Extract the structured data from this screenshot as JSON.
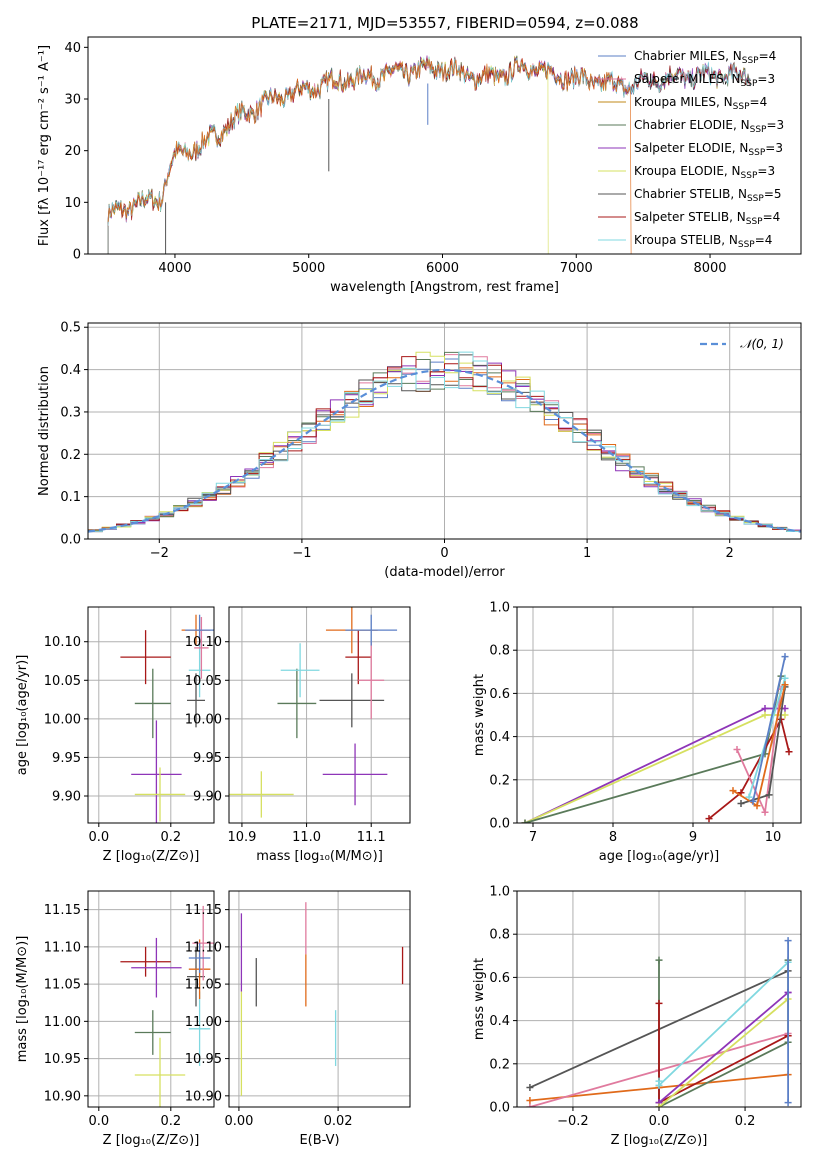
{
  "title": "PLATE=2171, MJD=53557, FIBERID=0594, z=0.088",
  "colors": {
    "Chabrier MILES": "#5b7fc6",
    "Salpeter MILES": "#e07a9e",
    "Kroupa MILES": "#c08a1a",
    "Chabrier ELODIE": "#5a7a5a",
    "Salpeter ELODIE": "#8e35b8",
    "Kroupa ELODIE": "#d6e060",
    "Chabrier STELIB": "#555555",
    "Salpeter STELIB": "#a81818",
    "Kroupa STELIB": "#80d8e0",
    "orange": "#e06a1a",
    "gaussian": "#5a8fd8",
    "grid": "#b0b0b0"
  },
  "chart_data": [
    {
      "id": "spectrum",
      "type": "line",
      "title": "PLATE=2171, MJD=53557, FIBERID=0594, z=0.088",
      "xlabel": "wavelength [Angstrom, rest frame]",
      "ylabel": "Flux [fλ 10⁻¹⁷ erg cm⁻² s⁻¹ A⁻¹]",
      "xlim": [
        3350,
        8680
      ],
      "ylim": [
        0,
        42
      ],
      "xticks": [
        4000,
        5000,
        6000,
        7000,
        8000
      ],
      "yticks": [
        0,
        10,
        20,
        30,
        40
      ],
      "grid": false,
      "legend_position": "top-right",
      "legend": [
        {
          "base": "Chabrier MILES, N",
          "sub": "SSP",
          "tail": "=4"
        },
        {
          "base": "Salpeter MILES, N",
          "sub": "SSP",
          "tail": "=3"
        },
        {
          "base": "Kroupa MILES, N",
          "sub": "SSP",
          "tail": "=4"
        },
        {
          "base": "Chabrier ELODIE, N",
          "sub": "SSP",
          "tail": "=3"
        },
        {
          "base": "Salpeter ELODIE, N",
          "sub": "SSP",
          "tail": "=3"
        },
        {
          "base": "Kroupa ELODIE, N",
          "sub": "SSP",
          "tail": "=3"
        },
        {
          "base": "Chabrier STELIB, N",
          "sub": "SSP",
          "tail": "=5"
        },
        {
          "base": "Salpeter STELIB, N",
          "sub": "SSP",
          "tail": "=4"
        },
        {
          "base": "Kroupa STELIB, N",
          "sub": "SSP",
          "tail": "=4"
        }
      ],
      "continuum": {
        "x": [
          3500,
          3700,
          3900,
          3950,
          4000,
          4200,
          4300,
          4500,
          4800,
          5000,
          5200,
          5500,
          5800,
          6000,
          6300,
          6500,
          6600,
          6800,
          7000,
          7200,
          7400,
          7600,
          8000,
          8300
        ],
        "y": [
          7.5,
          9.5,
          11,
          16,
          19,
          21,
          23,
          27,
          30.5,
          32,
          33.5,
          34.5,
          35.5,
          36,
          34,
          35,
          36.5,
          35,
          34,
          33,
          32.5,
          34,
          34.5,
          34.5
        ]
      },
      "cutoffs": {
        "Kroupa ELODIE": 6790,
        "orange": 7410,
        "Chabrier STELIB": 3930,
        "Chabrier ELODIE": 3930
      }
    },
    {
      "id": "residual-distribution",
      "type": "line",
      "xlabel": "(data-model)/error",
      "ylabel": "Normed distribution",
      "xlim": [
        -2.5,
        2.5
      ],
      "ylim": [
        0,
        0.51
      ],
      "xticks": [
        -2,
        -1,
        0,
        1,
        2
      ],
      "yticks": [
        0.0,
        0.1,
        0.2,
        0.3,
        0.4,
        0.5
      ],
      "grid": true,
      "legend_position": "top-right",
      "gaussian_label": "𝒩(0, 1)"
    },
    {
      "id": "age-vs-Z",
      "type": "scatter",
      "xlabel": "Z [log₁₀(Z/Z⊙)]",
      "ylabel": "age  [log₁₀(age/yr)]",
      "xlim": [
        -0.03,
        0.32
      ],
      "ylim": [
        9.865,
        10.145
      ],
      "xticks": [
        0.0,
        0.2
      ],
      "yticks": [
        9.9,
        9.95,
        10.0,
        10.05,
        10.1
      ],
      "points": [
        {
          "x": 0.13,
          "y": 10.08,
          "dx": 0.07,
          "dy": 0.035,
          "c": "Salpeter STELIB"
        },
        {
          "x": 0.15,
          "y": 10.02,
          "dx": 0.05,
          "dy": 0.045,
          "c": "Chabrier ELODIE"
        },
        {
          "x": 0.16,
          "y": 9.928,
          "dx": 0.07,
          "dy": 0.07,
          "c": "Salpeter ELODIE"
        },
        {
          "x": 0.17,
          "y": 9.902,
          "dx": 0.07,
          "dy": 0.035,
          "c": "Kroupa ELODIE"
        },
        {
          "x": 0.27,
          "y": 10.024,
          "dx": 0.025,
          "dy": 0.035,
          "c": "Chabrier STELIB"
        },
        {
          "x": 0.28,
          "y": 10.063,
          "dx": 0.03,
          "dy": 0.035,
          "c": "Kroupa STELIB"
        },
        {
          "x": 0.27,
          "y": 10.115,
          "dx": 0.04,
          "dy": 0.02,
          "c": "orange"
        },
        {
          "x": 0.285,
          "y": 10.092,
          "dx": 0.02,
          "dy": 0.04,
          "c": "Salpeter MILES"
        },
        {
          "x": 0.28,
          "y": 10.115,
          "dx": 0.04,
          "dy": 0.02,
          "c": "Chabrier MILES"
        }
      ]
    },
    {
      "id": "age-vs-mass",
      "type": "scatter",
      "xlabel": "mass [log₁₀(M/M⊙)]",
      "ylabel": "",
      "xlim": [
        10.88,
        11.16
      ],
      "ylim": [
        9.865,
        10.145
      ],
      "xticks": [
        10.9,
        11.0,
        11.1
      ],
      "yticks": [
        9.9,
        9.95,
        10.0,
        10.05,
        10.1
      ],
      "points": [
        {
          "x": 11.08,
          "y": 10.08,
          "dx": 0.02,
          "dy": 0.035,
          "c": "Salpeter STELIB"
        },
        {
          "x": 10.985,
          "y": 10.02,
          "dx": 0.03,
          "dy": 0.045,
          "c": "Chabrier ELODIE"
        },
        {
          "x": 11.075,
          "y": 9.928,
          "dx": 0.05,
          "dy": 0.04,
          "c": "Salpeter ELODIE"
        },
        {
          "x": 10.93,
          "y": 9.902,
          "dx": 0.05,
          "dy": 0.03,
          "c": "Kroupa ELODIE"
        },
        {
          "x": 11.07,
          "y": 10.024,
          "dx": 0.05,
          "dy": 0.035,
          "c": "Chabrier STELIB"
        },
        {
          "x": 10.99,
          "y": 10.063,
          "dx": 0.03,
          "dy": 0.035,
          "c": "Kroupa STELIB"
        },
        {
          "x": 11.07,
          "y": 10.115,
          "dx": 0.04,
          "dy": 0.03,
          "c": "orange"
        },
        {
          "x": 11.1,
          "y": 10.05,
          "dx": 0.02,
          "dy": 0.05,
          "c": "Salpeter MILES"
        },
        {
          "x": 11.1,
          "y": 10.115,
          "dx": 0.04,
          "dy": 0.02,
          "c": "Chabrier MILES"
        }
      ]
    },
    {
      "id": "weight-vs-age",
      "type": "line",
      "xlabel": "age  [log₁₀(age/yr)]",
      "ylabel": "mass weight",
      "xlim": [
        6.8,
        10.35
      ],
      "ylim": [
        0,
        1.0
      ],
      "xticks": [
        7,
        8,
        9,
        10
      ],
      "yticks": [
        0.0,
        0.2,
        0.4,
        0.6,
        0.8,
        1.0
      ],
      "grid": true,
      "series": [
        {
          "c": "Salpeter ELODIE",
          "x": [
            6.9,
            9.9,
            10.15
          ],
          "y": [
            0.0,
            0.53,
            0.53
          ]
        },
        {
          "c": "Kroupa ELODIE",
          "x": [
            6.9,
            9.9,
            10.15
          ],
          "y": [
            0.0,
            0.5,
            0.5
          ]
        },
        {
          "c": "Chabrier ELODIE",
          "x": [
            6.9,
            9.9,
            10.1
          ],
          "y": [
            0.0,
            0.32,
            0.68
          ]
        },
        {
          "c": "Salpeter STELIB",
          "x": [
            9.2,
            9.6,
            10.1,
            10.2
          ],
          "y": [
            0.02,
            0.14,
            0.48,
            0.33
          ]
        },
        {
          "c": "Salpeter MILES",
          "x": [
            9.55,
            9.9,
            10.1
          ],
          "y": [
            0.34,
            0.05,
            0.62
          ]
        },
        {
          "c": "Chabrier STELIB",
          "x": [
            9.6,
            9.95,
            10.15
          ],
          "y": [
            0.09,
            0.13,
            0.63
          ]
        },
        {
          "c": "Kroupa STELIB",
          "x": [
            9.7,
            10.15
          ],
          "y": [
            0.12,
            0.67
          ]
        },
        {
          "c": "orange",
          "x": [
            9.5,
            9.8,
            10.15
          ],
          "y": [
            0.15,
            0.08,
            0.64
          ]
        },
        {
          "c": "Chabrier MILES",
          "x": [
            9.75,
            10.15
          ],
          "y": [
            0.1,
            0.77
          ]
        }
      ]
    },
    {
      "id": "mass-vs-Z",
      "type": "scatter",
      "xlabel": "Z [log₁₀(Z/Z⊙)]",
      "ylabel": "mass [log₁₀(M/M⊙)]",
      "xlim": [
        -0.03,
        0.32
      ],
      "ylim": [
        10.885,
        11.175
      ],
      "xticks": [
        0.0,
        0.2
      ],
      "yticks": [
        10.9,
        10.95,
        11.0,
        11.05,
        11.1,
        11.15
      ],
      "points": [
        {
          "x": 0.13,
          "y": 11.08,
          "dx": 0.07,
          "dy": 0.02,
          "c": "Salpeter STELIB"
        },
        {
          "x": 0.15,
          "y": 10.985,
          "dx": 0.05,
          "dy": 0.03,
          "c": "Chabrier ELODIE"
        },
        {
          "x": 0.16,
          "y": 11.072,
          "dx": 0.07,
          "dy": 0.04,
          "c": "Salpeter ELODIE"
        },
        {
          "x": 0.17,
          "y": 10.928,
          "dx": 0.07,
          "dy": 0.05,
          "c": "Kroupa ELODIE"
        },
        {
          "x": 0.27,
          "y": 11.06,
          "dx": 0.025,
          "dy": 0.04,
          "c": "Chabrier STELIB"
        },
        {
          "x": 0.28,
          "y": 10.99,
          "dx": 0.03,
          "dy": 0.05,
          "c": "Kroupa STELIB"
        },
        {
          "x": 0.28,
          "y": 11.07,
          "dx": 0.03,
          "dy": 0.04,
          "c": "orange"
        },
        {
          "x": 0.29,
          "y": 11.105,
          "dx": 0.03,
          "dy": 0.05,
          "c": "Salpeter MILES"
        },
        {
          "x": 0.28,
          "y": 11.085,
          "dx": 0.03,
          "dy": 0.02,
          "c": "Chabrier MILES"
        }
      ]
    },
    {
      "id": "mass-vs-EBV",
      "type": "scatter",
      "xlabel": "E(B-V)",
      "ylabel": "",
      "xlim": [
        -0.002,
        0.0345
      ],
      "ylim": [
        10.885,
        11.175
      ],
      "xticks": [
        0.0,
        0.02
      ],
      "yticks": [
        10.9,
        10.95,
        11.0,
        11.05,
        11.1,
        11.15
      ],
      "segments": [
        {
          "x": 0.0005,
          "y0": 11.04,
          "y1": 11.145,
          "c": "Salpeter ELODIE"
        },
        {
          "x": 0.0005,
          "y0": 10.9,
          "y1": 11.04,
          "c": "Kroupa ELODIE"
        },
        {
          "x": 0.0035,
          "y0": 11.02,
          "y1": 11.085,
          "c": "Chabrier STELIB"
        },
        {
          "x": 0.0135,
          "y0": 11.09,
          "y1": 11.16,
          "c": "Salpeter MILES"
        },
        {
          "x": 0.0135,
          "y0": 11.02,
          "y1": 11.09,
          "c": "orange"
        },
        {
          "x": 0.0195,
          "y0": 10.94,
          "y1": 11.015,
          "c": "Kroupa STELIB"
        },
        {
          "x": 0.033,
          "y0": 11.05,
          "y1": 11.1,
          "c": "Salpeter STELIB"
        }
      ]
    },
    {
      "id": "weight-vs-Z",
      "type": "line",
      "xlabel": "Z [log₁₀(Z/Z⊙)]",
      "ylabel": "mass weight",
      "xlim": [
        -0.33,
        0.33
      ],
      "ylim": [
        0,
        1.0
      ],
      "xticks": [
        -0.2,
        0.0,
        0.2
      ],
      "yticks": [
        0.0,
        0.2,
        0.4,
        0.6,
        0.8,
        1.0
      ],
      "grid": true,
      "series": [
        {
          "c": "Chabrier STELIB",
          "x": [
            -0.3,
            0.3
          ],
          "y": [
            0.09,
            0.63
          ]
        },
        {
          "c": "orange",
          "x": [
            -0.3,
            0.0,
            0.3
          ],
          "y": [
            0.03,
            0.09,
            0.15
          ]
        },
        {
          "c": "Salpeter MILES",
          "x": [
            -0.3,
            0.0,
            0.3
          ],
          "y": [
            0.0,
            0.17,
            0.34
          ]
        },
        {
          "c": "Chabrier ELODIE",
          "x": [
            0.0,
            0.0,
            0.3,
            0.3
          ],
          "y": [
            0.68,
            0.0,
            0.3,
            0.68
          ]
        },
        {
          "c": "Salpeter STELIB",
          "x": [
            0.0,
            0.0,
            0.3,
            0.3
          ],
          "y": [
            0.48,
            0.02,
            0.33,
            0.33
          ]
        },
        {
          "c": "Salpeter ELODIE",
          "x": [
            0.0,
            0.3,
            0.3
          ],
          "y": [
            0.02,
            0.53,
            0.53
          ]
        },
        {
          "c": "Kroupa ELODIE",
          "x": [
            0.0,
            0.3
          ],
          "y": [
            0.0,
            0.5
          ]
        },
        {
          "c": "Kroupa STELIB",
          "x": [
            0.0,
            0.0,
            0.3
          ],
          "y": [
            0.12,
            0.1,
            0.67
          ]
        },
        {
          "c": "Chabrier MILES",
          "x": [
            0.3,
            0.3
          ],
          "y": [
            0.02,
            0.77
          ]
        }
      ]
    }
  ]
}
